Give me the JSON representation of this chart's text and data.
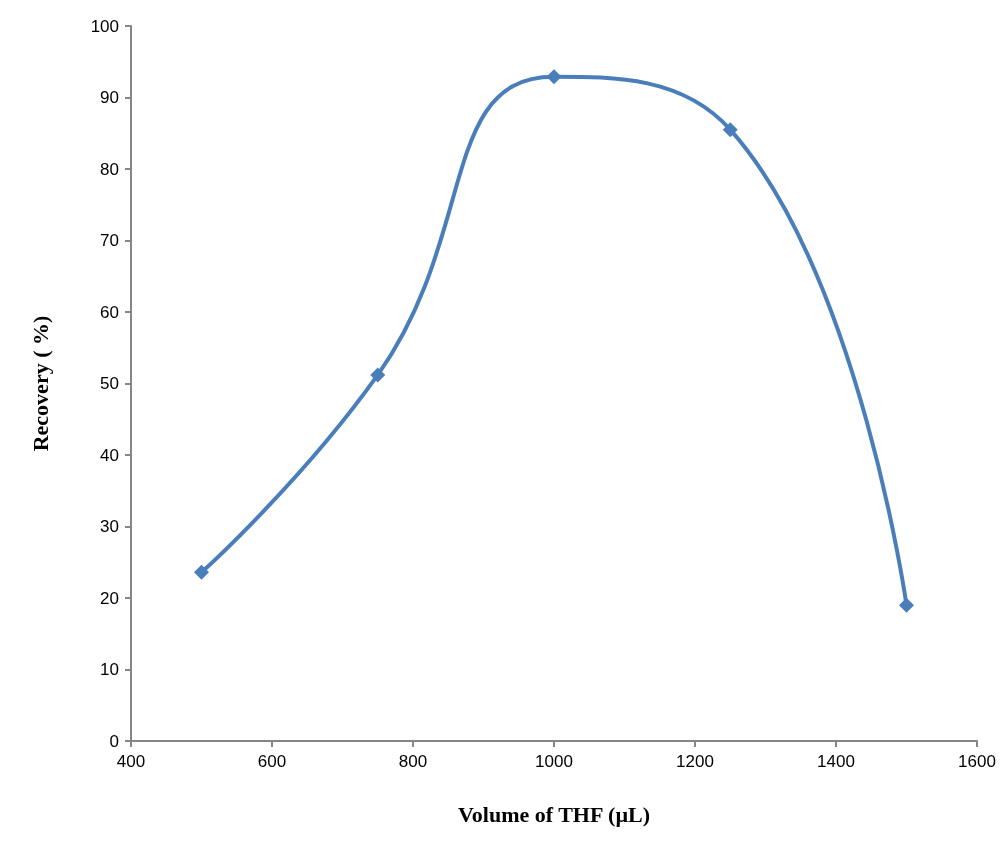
{
  "chart_data": {
    "type": "line",
    "xlabel": "Volume of THF (µL)",
    "ylabel": "Recovery ( %)",
    "x": [
      500,
      750,
      1000,
      1250,
      1500
    ],
    "series": [
      {
        "color": "#4a7ebb",
        "values": [
          23.6,
          51.2,
          92.9,
          85.5,
          19.0
        ]
      }
    ],
    "xlim": [
      400,
      1600
    ],
    "xticks": [
      400,
      600,
      800,
      1000,
      1200,
      1400,
      1600
    ],
    "ylim": [
      0,
      100
    ],
    "yticks": [
      0,
      10,
      20,
      30,
      40,
      50,
      60,
      70,
      80,
      90,
      100
    ],
    "grid": false,
    "marker": "diamond",
    "line_style": "solid"
  }
}
